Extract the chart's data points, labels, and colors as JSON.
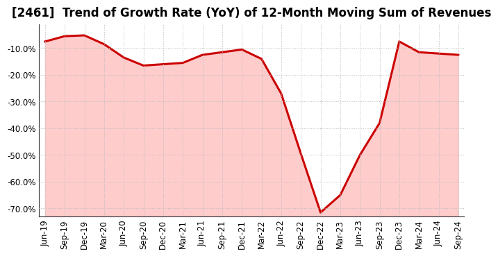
{
  "title": "[2461]  Trend of Growth Rate (YoY) of 12-Month Moving Sum of Revenues",
  "x_labels": [
    "Jun-19",
    "Sep-19",
    "Dec-19",
    "Mar-20",
    "Jun-20",
    "Sep-20",
    "Dec-20",
    "Mar-21",
    "Jun-21",
    "Sep-21",
    "Dec-21",
    "Mar-22",
    "Jun-22",
    "Sep-22",
    "Dec-22",
    "Mar-23",
    "Jun-23",
    "Sep-23",
    "Dec-23",
    "Mar-24",
    "Jun-24",
    "Sep-24"
  ],
  "y_values": [
    -7.5,
    -5.5,
    -5.2,
    -8.5,
    -13.5,
    -16.5,
    -16.0,
    -15.5,
    -12.5,
    -11.5,
    -10.5,
    -14.0,
    -27.0,
    -49.5,
    -71.5,
    -65.0,
    -50.0,
    -38.0,
    -7.5,
    -11.5,
    -12.0,
    -12.5
  ],
  "ylim_min": -73,
  "ylim_max": -1,
  "yticks": [
    -70,
    -60,
    -50,
    -40,
    -30,
    -20,
    -10
  ],
  "line_color": "#cc0000",
  "fill_color": "#ffcccc",
  "line_width": 2.2,
  "background_color": "#ffffff",
  "grid_color": "#bbbbbb",
  "title_fontsize": 12,
  "tick_fontsize": 8.5
}
